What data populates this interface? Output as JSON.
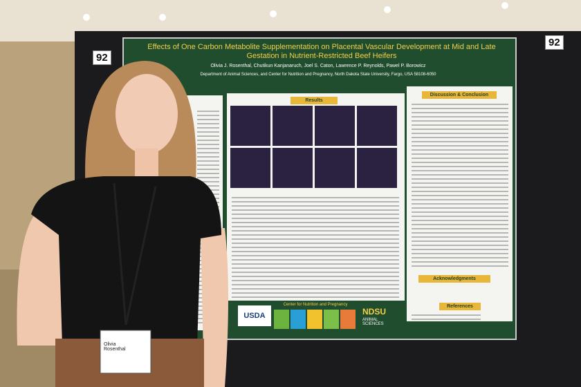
{
  "board_number_left": "92",
  "board_number_right": "92",
  "poster": {
    "title": "Effects of One Carbon Metabolite Supplementation on Placental Vascular Development at Mid and Late Gestation in Nutrient-Restricted Beef Heifers",
    "authors": "Olivia J. Rosenthal, Chutikun Kanjanaruch, Joel S. Caton, Lawrence P. Reynolds, Pawel P. Borowicz",
    "affiliation": "Department of Animal Sciences, and Center for Nutrition and Pregnancy, North Dakota State University, Fargo, USA 58108-6050",
    "sections": [
      "Results",
      "Discussion & Conclusion",
      "Acknowledgments",
      "References"
    ],
    "logos": [
      "USDA",
      "Center for Nutrition and Pregnancy",
      "NDSU",
      "ANIMAL SCIENCES"
    ]
  },
  "badge": {
    "name": "Olivia Rosenthal"
  }
}
